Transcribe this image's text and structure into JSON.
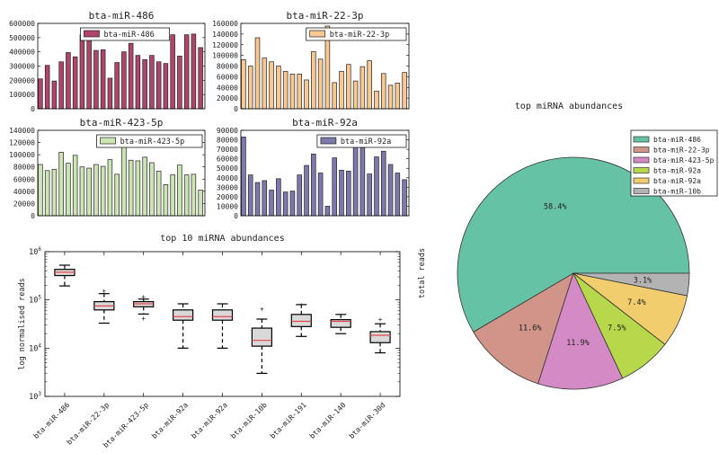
{
  "chart_data": [
    {
      "type": "bar",
      "title": "bta-miR-486",
      "legend": "bta-miR-486",
      "legend_placement": "top-center",
      "color": "#b0456c",
      "ylim": [
        0,
        600000
      ],
      "yticks": [
        0,
        100000,
        200000,
        300000,
        400000,
        500000,
        600000
      ],
      "values": [
        210000,
        305000,
        195000,
        330000,
        395000,
        365000,
        520000,
        500000,
        410000,
        415000,
        215000,
        325000,
        400000,
        460000,
        375000,
        345000,
        375000,
        330000,
        318000,
        520000,
        370000,
        520000,
        525000,
        430000
      ]
    },
    {
      "type": "bar",
      "title": "bta-miR-22-3p",
      "legend": "bta-miR-22-3p",
      "legend_placement": "top-right",
      "color": "#f9c890",
      "ylim": [
        0,
        160000
      ],
      "yticks": [
        0,
        20000,
        40000,
        60000,
        80000,
        100000,
        120000,
        140000,
        160000
      ],
      "values": [
        92000,
        80000,
        133000,
        95000,
        88000,
        80000,
        70000,
        65000,
        65000,
        54000,
        107000,
        93000,
        155000,
        49000,
        70000,
        83000,
        52000,
        79000,
        90000,
        33000,
        66000,
        44000,
        48000,
        68000
      ]
    },
    {
      "type": "bar",
      "title": "bta-miR-423-5p",
      "legend": "bta-miR-423-5p",
      "legend_placement": "top-right",
      "color": "#cbe5b3",
      "ylim": [
        0,
        140000
      ],
      "yticks": [
        0,
        20000,
        40000,
        60000,
        80000,
        100000,
        120000,
        140000
      ],
      "values": [
        84000,
        74000,
        76000,
        104000,
        86000,
        99000,
        80000,
        78000,
        84000,
        81000,
        92000,
        68000,
        118000,
        91000,
        90000,
        96000,
        87000,
        73000,
        51000,
        67000,
        83000,
        67000,
        68000,
        42000
      ]
    },
    {
      "type": "bar",
      "title": "bta-miR-92a",
      "legend": "bta-miR-92a",
      "legend_placement": "top-right",
      "color": "#7d79ad",
      "ylim": [
        0,
        90000
      ],
      "yticks": [
        0,
        10000,
        20000,
        30000,
        40000,
        50000,
        60000,
        70000,
        80000,
        90000
      ],
      "values": [
        83000,
        43000,
        35000,
        37000,
        27000,
        39000,
        25000,
        26000,
        43000,
        53000,
        65000,
        45000,
        10000,
        61000,
        48000,
        47000,
        75000,
        72000,
        44000,
        62000,
        68000,
        54000,
        45000,
        38000
      ]
    },
    {
      "type": "box",
      "title": "top 10 miRNA abundances",
      "ylabel": "log normalised reads",
      "yscale": "log",
      "ylim": [
        1000,
        1000000
      ],
      "yticks": [
        "10^3",
        "10^4",
        "10^5",
        "10^6"
      ],
      "box_color": "#d9d9d9",
      "median_color": "#e8474b",
      "categories": [
        "bta-miR-486",
        "bta-miR-22-3p",
        "bta-miR-423-5p",
        "bta-miR-92a",
        "bta-miR-92a",
        "bta-miR-10b",
        "bta-miR-191",
        "bta-miR-140",
        "bta-miR-30d"
      ],
      "boxes": [
        {
          "low": 195000,
          "q1": 320000,
          "median": 375000,
          "q3": 430000,
          "high": 525000,
          "fliers": []
        },
        {
          "low": 33000,
          "q1": 62000,
          "median": 75000,
          "q3": 92000,
          "high": 135000,
          "fliers": [
            155000
          ]
        },
        {
          "low": 51000,
          "q1": 72000,
          "median": 83000,
          "q3": 92000,
          "high": 104000,
          "fliers": [
            118000,
            42000
          ]
        },
        {
          "low": 10000,
          "q1": 38000,
          "median": 45000,
          "q3": 62000,
          "high": 83000,
          "fliers": []
        },
        {
          "low": 10000,
          "q1": 38000,
          "median": 45000,
          "q3": 62000,
          "high": 83000,
          "fliers": []
        },
        {
          "low": 3000,
          "q1": 11000,
          "median": 14500,
          "q3": 26000,
          "high": 40000,
          "fliers": [
            65000
          ]
        },
        {
          "low": 17500,
          "q1": 28000,
          "median": 36000,
          "q3": 50000,
          "high": 80000,
          "fliers": [
            80000
          ]
        },
        {
          "low": 20000,
          "q1": 27000,
          "median": 36000,
          "q3": 39000,
          "high": 50000,
          "fliers": []
        },
        {
          "low": 8000,
          "q1": 13000,
          "median": 18500,
          "q3": 22000,
          "high": 32000,
          "fliers": [
            40000
          ]
        }
      ]
    },
    {
      "type": "pie",
      "title": "top miRNA abundances",
      "ylabel": "total reads",
      "legend_placement": "top-right",
      "labels": [
        "bta-miR-486",
        "bta-miR-22-3p",
        "bta-miR-423-5p",
        "bta-miR-92a",
        "bta-miR-92a",
        "bta-miR-10b"
      ],
      "values": [
        58.4,
        11.6,
        11.9,
        7.5,
        7.4,
        3.1
      ],
      "value_labels": [
        "58.4%",
        "11.6%",
        "11.9%",
        "7.5%",
        "7.4%",
        "3.1%"
      ],
      "colors": [
        "#66c2a5",
        "#d09588",
        "#d48ac5",
        "#b8d84c",
        "#f1cd6d",
        "#b3b3b3"
      ],
      "start_angle_deg": 0,
      "direction": "counterclockwise"
    }
  ]
}
